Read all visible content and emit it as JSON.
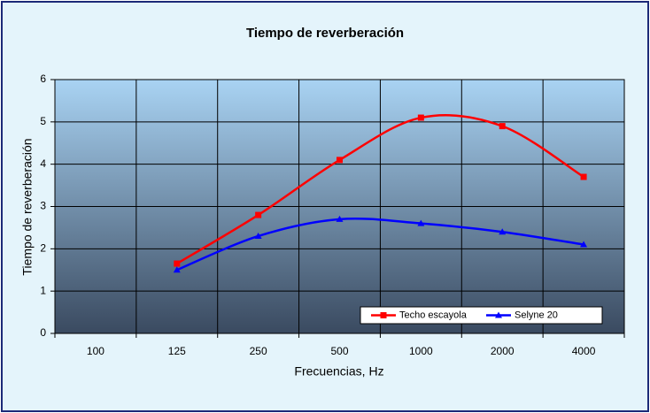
{
  "chart_data": {
    "type": "line",
    "title": "Tiempo de reverberación",
    "y_label": "Tiempo de reverberación",
    "x_label": "Frecuencias, Hz",
    "categories": [
      "100",
      "125",
      "250",
      "500",
      "1000",
      "2000",
      "4000"
    ],
    "series": [
      {
        "name": "Techo escayola",
        "color": "#ff0000",
        "marker": "square",
        "values": [
          null,
          1.65,
          2.8,
          4.1,
          5.1,
          4.9,
          3.7
        ]
      },
      {
        "name": "Selyne 20",
        "color": "#0000ff",
        "marker": "triangle",
        "values": [
          null,
          1.5,
          2.3,
          2.7,
          2.6,
          2.4,
          2.1
        ]
      }
    ],
    "ylim": [
      0,
      6
    ],
    "yticks": [
      0,
      1,
      2,
      3,
      4,
      5,
      6
    ],
    "grid": true,
    "smooth": true,
    "legend": "lower right"
  }
}
